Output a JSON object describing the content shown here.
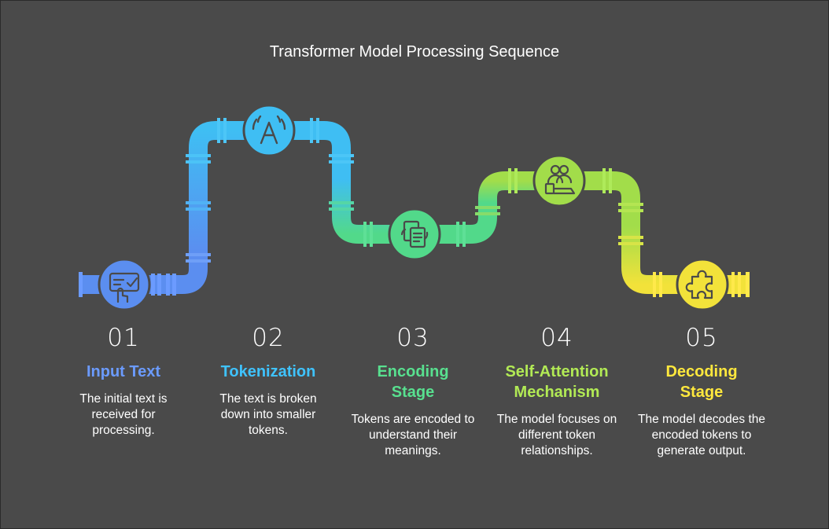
{
  "title": "Transformer Model Processing Sequence",
  "colors": {
    "background": "#4a4a4a",
    "step1": "#5b8ef0",
    "step2": "#3fb6f0",
    "step3": "#52d98a",
    "step4": "#a2dd4a",
    "step5": "#f2e23a"
  },
  "steps": [
    {
      "number": "01",
      "heading": "Input Text",
      "description": "The initial text is received for processing.",
      "icon": "hand-touch-screen-icon",
      "color": "#6b9bff"
    },
    {
      "number": "02",
      "heading": "Tokenization",
      "description": "The text is broken down into smaller tokens.",
      "icon": "letter-a-signal-icon",
      "color": "#3fc3ff"
    },
    {
      "number": "03",
      "heading": "Encoding Stage",
      "description": "Tokens are encoded to understand their meanings.",
      "icon": "documents-sync-icon",
      "color": "#58e08f"
    },
    {
      "number": "04",
      "heading": "Self-Attention Mechanism",
      "description": "The model focuses on different token relationships.",
      "icon": "people-focus-icon",
      "color": "#b2ea55"
    },
    {
      "number": "05",
      "heading": "Decoding Stage",
      "description": "The model decodes the encoded tokens to generate output.",
      "icon": "puzzle-piece-icon",
      "color": "#ffe83d"
    }
  ]
}
